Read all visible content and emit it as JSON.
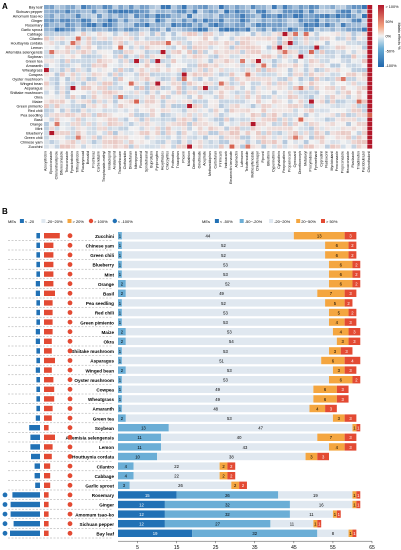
{
  "panel_labels": {
    "a": "A",
    "b": "B"
  },
  "colors": {
    "strong_negative": "#2166ac",
    "negative": "#6baed6",
    "neutral": "#f2f2f2",
    "positive": "#f4a582",
    "strong_positive": "#b2182b",
    "bar_dark_blue": "#2171b5",
    "bar_mid_blue": "#6baed6",
    "bar_light_blue": "#c6dbef",
    "bar_light_gray": "#e0e8f0",
    "bar_light_orange": "#fdd0a2",
    "bar_orange": "#f4a640",
    "bar_red": "#e34a33"
  },
  "chart_data": [
    {
      "type": "heatmap",
      "title": "",
      "rows": [
        "Bay leaf",
        "Sichuan pepper",
        "Amomum tsao-ko",
        "Ginger",
        "Rosemary",
        "Garlic sprout",
        "Cabbage",
        "Cilantro",
        "Houttuynia cordata",
        "Lemon",
        "Artemisia selengensis",
        "Soybean",
        "Green tea",
        "Amaranth",
        "Wheatgrass",
        "Cowpea",
        "Oyster mushroom",
        "Winged bean",
        "Asparagus",
        "Shiitake mushroom",
        "Okra",
        "Maize",
        "Green pimiento",
        "Red chili",
        "Pea seedling",
        "Basil",
        "Orange",
        "Mint",
        "Blueberry",
        "Green chili",
        "Chinese yam",
        "Zucchini"
      ],
      "columns": [
        "Azoxystrobin",
        "Epoxiconazole",
        "Chlorantraniliprole",
        "Difenoconazole",
        "Tebuconazole",
        "Pyraclostrobin",
        "Trifloxystrobin",
        "Fluxapyroxad",
        "Boscalid",
        "Prochloraz",
        "Carbendazim",
        "Thiophanate-methyl",
        "Imidacloprid",
        "Acetamiprid",
        "Thiamethoxam",
        "Clothianidin",
        "Dinotefuran",
        "Nitenpyram",
        "Flonicamid",
        "Spirotetramat",
        "Buprofezin",
        "Pyriproxyfen",
        "Hexythiazox",
        "Chlorpyrifos",
        "Profenofos",
        "Triazophos",
        "Phoxim",
        "Malathion",
        "Dimethoate",
        "Omethoate",
        "Acephate",
        "Methamidophos",
        "Carbofuran",
        "Pirimicarb",
        "Indoxacarb",
        "Emamectin benzoate",
        "Abamectin",
        "Lufenuron",
        "Tebufenozide",
        "Methoxyfenozide",
        "Chlorfenapyr",
        "Fipronil",
        "Bifenthrin",
        "Cypermethrin",
        "Cyhalothrin",
        "Fenpropathrin",
        "Propamocarb",
        "Cymoxanil",
        "Dimethomorph",
        "Metalaxyl",
        "Procymidone",
        "Pyrimethanil",
        "Cyprodinil",
        "Fludioxonil",
        "Myclobutanil",
        "Penconazole",
        "Propiconazole",
        "Hexaconazole",
        "Flusilazole",
        "Triadimefon",
        "Paclobutrazol",
        "Chlorothalonil"
      ],
      "colorbar": {
        "title": "Matrix effects %",
        "ticks": [
          "> 100%",
          "50%",
          "0%",
          "-50%",
          "-100%"
        ],
        "range": [
          -100,
          100
        ]
      }
    },
    {
      "type": "bar",
      "stacked": true,
      "orientation": "horizontal",
      "categories": [
        "Zucchini",
        "Chinese yam",
        "Green chili",
        "Blueberry",
        "Mint",
        "Orange",
        "Basil",
        "Pea seedling",
        "Red chili",
        "Green pimiento",
        "Maize",
        "Okra",
        "Shiitake mushroom",
        "Asparagus",
        "Winged bean",
        "Oyster mushroom",
        "Cowpea",
        "Wheatgrass",
        "Amaranth",
        "Green tea",
        "Soybean",
        "Artemisia selengensis",
        "Lemon",
        "Houttuynia cordata",
        "Cilantro",
        "Cabbage",
        "Garlic sprout",
        "Rosemary",
        "Ginger",
        "Amomum tsao-ko",
        "Sichuan pepper",
        "Bay leaf"
      ],
      "series": [
        {
          "name": "< -50%",
          "values": [
            0,
            0,
            0,
            0,
            0,
            0,
            0,
            0,
            0,
            0,
            0,
            0,
            0,
            0,
            0,
            0,
            0,
            0,
            0,
            0,
            0,
            0,
            0,
            0,
            0,
            0,
            0,
            15,
            12,
            12,
            12,
            19
          ]
        },
        {
          "name": "-50~-20%",
          "values": [
            1,
            1,
            1,
            1,
            1,
            2,
            2,
            1,
            1,
            1,
            2,
            2,
            1,
            1,
            2,
            1,
            1,
            1,
            1,
            2,
            13,
            11,
            11,
            10,
            4,
            4,
            3,
            26,
            32,
            32,
            27,
            32
          ]
        },
        {
          "name": "-20~20%",
          "values": [
            44,
            52,
            52,
            53,
            53,
            52,
            49,
            52,
            53,
            53,
            53,
            54,
            53,
            51,
            53,
            53,
            49,
            49,
            48,
            53,
            47,
            40,
            43,
            38,
            22,
            22,
            26,
            19,
            16,
            11,
            11,
            8
          ]
        },
        {
          "name": "20~50%",
          "values": [
            13,
            6,
            6,
            6,
            6,
            6,
            7,
            5,
            5,
            4,
            4,
            3,
            3,
            6,
            3,
            6,
            6,
            6,
            4,
            3,
            1,
            7,
            4,
            3,
            2,
            2,
            2,
            1,
            1,
            1,
            1,
            1
          ]
        },
        {
          "name": "> 50%",
          "values": [
            3,
            2,
            2,
            2,
            2,
            2,
            3,
            2,
            2,
            3,
            3,
            3,
            3,
            4,
            3,
            2,
            3,
            3,
            3,
            3,
            1,
            3,
            3,
            3,
            2,
            2,
            2,
            1,
            1,
            1,
            1,
            1
          ]
        }
      ],
      "xlim": [
        0,
        65
      ],
      "xticks": [
        5,
        15,
        25,
        35,
        45,
        55,
        65
      ],
      "legend_top_left": [
        "MEs",
        "< -20",
        "-20~20%",
        "> 20%",
        "> 100%",
        "< -100%"
      ],
      "legend_top_right": [
        "MEs",
        "< -50%",
        "-50~-20%",
        "-20~20%",
        "20~50%",
        "> 50%"
      ]
    }
  ]
}
